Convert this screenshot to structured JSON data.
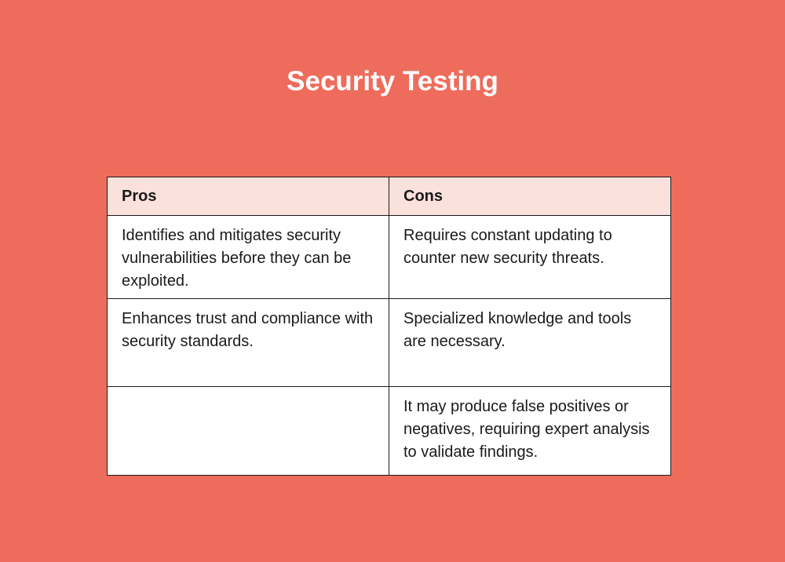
{
  "title": "Security Testing",
  "table": {
    "headers": [
      "Pros",
      "Cons"
    ],
    "rows": [
      [
        "Identifies and mitigates security vulnerabilities before they can be exploited.",
        "Requires constant updating to counter new security threats."
      ],
      [
        "Enhances trust and compliance with security standards.",
        "Specialized knowledge and tools are necessary."
      ],
      [
        "",
        "It may produce false positives or negatives, requiring expert analysis to validate findings."
      ]
    ]
  },
  "colors": {
    "background": "#EE6C5B",
    "header": "#FBE1DB",
    "text": "#1a1a1a"
  }
}
